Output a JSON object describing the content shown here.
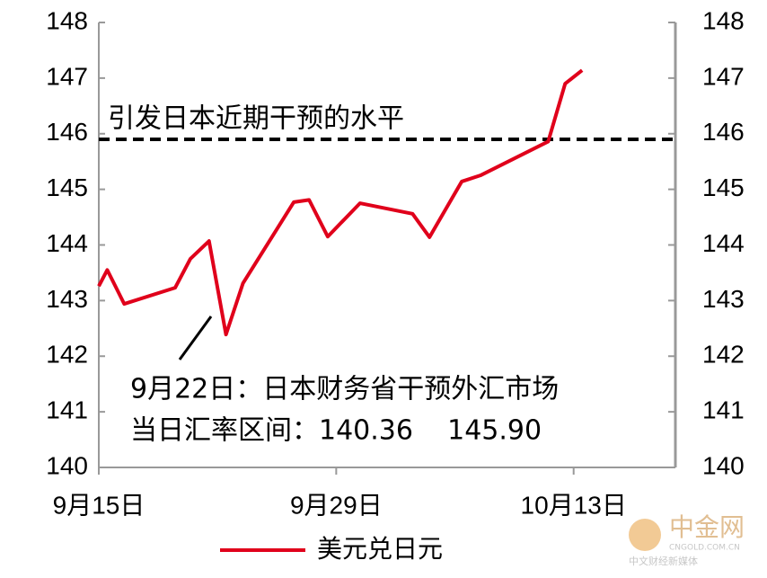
{
  "chart_data": {
    "type": "line",
    "x": [
      0,
      0.5,
      1.5,
      4.5,
      5.4,
      6.5,
      7.5,
      8.5,
      11.5,
      12.4,
      13.5,
      15.4,
      18.5,
      19.5,
      21.4,
      22.5,
      26.5,
      27.5,
      28.5
    ],
    "series": [
      {
        "name": "美元兑日元",
        "color": "#e0001b",
        "values": [
          143.26,
          143.55,
          142.94,
          143.23,
          143.75,
          144.07,
          142.39,
          143.31,
          144.77,
          144.81,
          144.15,
          144.75,
          144.56,
          144.14,
          145.14,
          145.25,
          145.86,
          146.9,
          147.14
        ]
      }
    ],
    "xlim": [
      0,
      34
    ],
    "xticks": [
      {
        "value": 0,
        "label": "9月15日"
      },
      {
        "value": 14,
        "label": "9月29日"
      },
      {
        "value": 28,
        "label": "10月13日"
      }
    ],
    "ylim": [
      140,
      148
    ],
    "yticks": [
      140,
      141,
      142,
      143,
      144,
      145,
      146,
      147,
      148
    ],
    "y2lim": [
      140,
      148
    ],
    "y2ticks": [
      140,
      141,
      142,
      143,
      144,
      145,
      146,
      147,
      148
    ],
    "reference_line": {
      "value": 145.9,
      "label": "引发日本近期干预的水平"
    },
    "annotations": [
      "9月22日：日本财务省干预外汇市场",
      "当日汇率区间：140.36    145.90"
    ],
    "legend": "bottom",
    "watermark": [
      "中金网",
      "CNGOLD.COM.CN",
      "中文财经新媒体"
    ]
  }
}
